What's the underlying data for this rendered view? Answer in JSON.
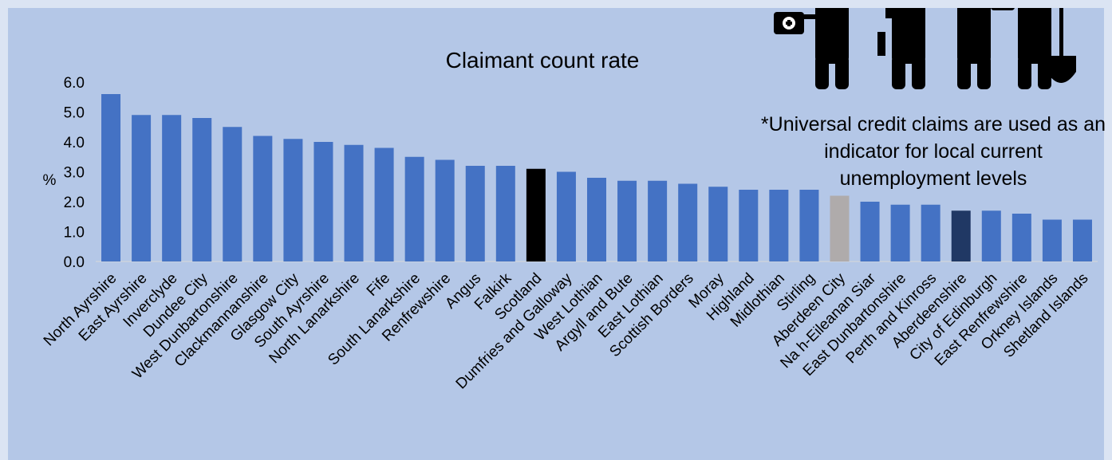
{
  "chart_data": {
    "type": "bar",
    "title": "Claimant count rate",
    "ylabel": "%",
    "xlabel": "",
    "ylim": [
      0,
      6
    ],
    "yticks": [
      "0.0",
      "1.0",
      "2.0",
      "3.0",
      "4.0",
      "5.0",
      "6.0"
    ],
    "grid": false,
    "categories": [
      "North Ayrshire",
      "East Ayrshire",
      "Inverclyde",
      "Dundee City",
      "West Dunbartonshire",
      "Clackmannanshire",
      "Glasgow City",
      "South Ayrshire",
      "North Lanarkshire",
      "Fife",
      "South Lanarkshire",
      "Renfrewshire",
      "Angus",
      "Falkirk",
      "Scotland",
      "Dumfries and Galloway",
      "West Lothian",
      "Argyll and Bute",
      "East Lothian",
      "Scottish Borders",
      "Moray",
      "Highland",
      "Midlothian",
      "Stirling",
      "Aberdeen City",
      "Na h-Eileanan Siar",
      "East Dunbartonshire",
      "Perth and Kinross",
      "Aberdeenshire",
      "City of Edinburgh",
      "East Renfrewshire",
      "Orkney Islands",
      "Shetland Islands"
    ],
    "values": [
      5.6,
      4.9,
      4.9,
      4.8,
      4.5,
      4.2,
      4.1,
      4.0,
      3.9,
      3.8,
      3.5,
      3.4,
      3.2,
      3.2,
      3.1,
      3.0,
      2.8,
      2.7,
      2.7,
      2.6,
      2.5,
      2.4,
      2.4,
      2.4,
      2.2,
      2.0,
      1.9,
      1.9,
      1.7,
      1.7,
      1.6,
      1.4,
      1.4
    ],
    "colors": {
      "default": "#4472c4",
      "Scotland": "#000000",
      "Aberdeen City": "#afabab",
      "Aberdeenshire": "#203864"
    }
  },
  "annotation": {
    "note": "*Universal credit claims are used as an indicator for local current unemployment levels",
    "icon": "unemployed-workers-icon"
  }
}
